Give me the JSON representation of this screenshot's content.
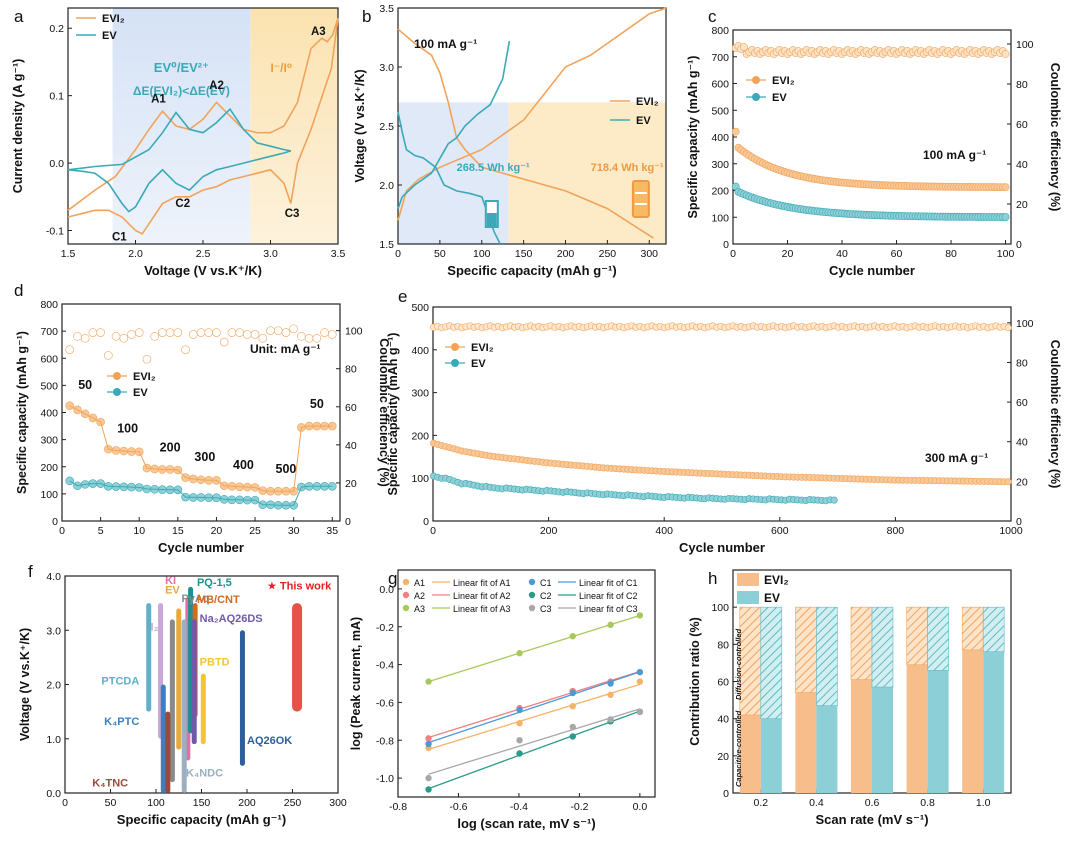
{
  "colors": {
    "evi2": "#f2a35a",
    "ev": "#3aaab8",
    "evi2_light": "#f8c896",
    "ev_light": "#8fd0d6",
    "band_blue": "#dfe9f7",
    "band_yellow": "#fcebc6",
    "redwork": "#e8504a",
    "red_star": "#e02020"
  },
  "chart_data": [
    {
      "panel": "a",
      "type": "line",
      "xlabel": "Voltage (V vs.K⁺/K)",
      "ylabel": "Current density (A g⁻¹)",
      "xlim": [
        1.5,
        3.5
      ],
      "ylim": [
        -0.12,
        0.23
      ],
      "xticks": [
        "1.5",
        "2.0",
        "2.5",
        "3.0",
        "3.5"
      ],
      "xtick_vals": [
        1.5,
        2.0,
        2.5,
        3.0,
        3.5
      ],
      "yticks": [
        "-0.1",
        "0.0",
        "0.1",
        "0.2"
      ],
      "ytick_vals": [
        -0.1,
        0.0,
        0.1,
        0.2
      ],
      "legend": [
        "EVI₂",
        "EV"
      ],
      "band_labels": {
        "title": "EV⁰/EV²⁺",
        "subtitle": "ΔE(EVI₂)<ΔE(EV)",
        "iodine": "I⁻/I⁰"
      },
      "peaks": [
        "A1",
        "A2",
        "A3",
        "C1",
        "C2",
        "C3"
      ],
      "series": [
        {
          "name": "EVI₂",
          "x": [
            1.5,
            1.7,
            1.85,
            2.0,
            2.1,
            2.2,
            2.3,
            2.4,
            2.5,
            2.6,
            2.7,
            2.8,
            2.9,
            3.0,
            3.1,
            3.2,
            3.3,
            3.38,
            3.42,
            3.46,
            3.5,
            3.45,
            3.35,
            3.3,
            3.2,
            3.15,
            3.1,
            3.0,
            2.9,
            2.8,
            2.7,
            2.6,
            2.5,
            2.4,
            2.3,
            2.2,
            2.1,
            2.05,
            2.0,
            1.9,
            1.8,
            1.7,
            1.6,
            1.5
          ],
          "y": [
            -0.07,
            -0.04,
            -0.02,
            0.02,
            0.05,
            0.077,
            0.055,
            0.05,
            0.065,
            0.09,
            0.07,
            0.05,
            0.045,
            0.045,
            0.055,
            0.09,
            0.17,
            0.185,
            0.18,
            0.19,
            0.215,
            0.14,
            0.08,
            0.05,
            0.0,
            -0.06,
            -0.03,
            -0.01,
            -0.015,
            -0.02,
            -0.025,
            -0.035,
            -0.04,
            -0.05,
            -0.05,
            -0.06,
            -0.09,
            -0.105,
            -0.1,
            -0.08,
            -0.07,
            -0.07,
            -0.075,
            -0.08
          ]
        },
        {
          "name": "EV",
          "x": [
            1.5,
            1.7,
            1.9,
            2.1,
            2.2,
            2.3,
            2.4,
            2.5,
            2.6,
            2.7,
            2.8,
            2.9,
            3.0,
            3.1,
            3.15,
            3.1,
            3.0,
            2.9,
            2.8,
            2.7,
            2.6,
            2.5,
            2.4,
            2.3,
            2.2,
            2.1,
            2.0,
            1.95,
            1.9,
            1.8,
            1.7,
            1.6,
            1.5
          ],
          "y": [
            -0.01,
            -0.005,
            -0.002,
            0.02,
            0.045,
            0.075,
            0.05,
            0.045,
            0.06,
            0.08,
            0.05,
            0.03,
            0.025,
            0.02,
            0.018,
            0.015,
            0.01,
            0.005,
            0.0,
            -0.005,
            -0.01,
            -0.02,
            -0.04,
            -0.03,
            -0.01,
            -0.03,
            -0.065,
            -0.072,
            -0.06,
            -0.03,
            -0.015,
            -0.012,
            -0.01
          ]
        }
      ]
    },
    {
      "panel": "b",
      "type": "line",
      "xlabel": "Specific capacity (mAh g⁻¹)",
      "ylabel": "Voltage (V vs.K⁺/K)",
      "xlim": [
        0,
        320
      ],
      "ylim": [
        1.5,
        3.5
      ],
      "xticks": [
        "0",
        "50",
        "100",
        "150",
        "200",
        "250",
        "300"
      ],
      "xtick_vals": [
        0,
        50,
        100,
        150,
        200,
        250,
        300
      ],
      "yticks": [
        "1.5",
        "2.0",
        "2.5",
        "3.0",
        "3.5"
      ],
      "ytick_vals": [
        1.5,
        2.0,
        2.5,
        3.0,
        3.5
      ],
      "annotation": "100 mA g⁻¹",
      "legend": [
        "EVI₂",
        "EV"
      ],
      "energy_labels": {
        "ev": "268.5 Wh kg⁻¹",
        "evi2": "718.4 Wh kg⁻¹"
      },
      "series": [
        {
          "name": "EVI₂ charge",
          "x": [
            0,
            10,
            25,
            50,
            100,
            150,
            200,
            230,
            250,
            300,
            320
          ],
          "y": [
            1.7,
            1.95,
            2.05,
            2.15,
            2.3,
            2.55,
            3.0,
            3.1,
            3.2,
            3.45,
            3.5
          ]
        },
        {
          "name": "EVI₂ discharge",
          "x": [
            0,
            20,
            40,
            50,
            60,
            70,
            80,
            100,
            150,
            200,
            250,
            305
          ],
          "y": [
            3.32,
            3.2,
            3.1,
            2.95,
            2.7,
            2.4,
            2.3,
            2.15,
            2.05,
            1.95,
            1.8,
            1.55
          ]
        },
        {
          "name": "EV charge",
          "x": [
            0,
            5,
            20,
            40,
            60,
            70,
            80,
            95,
            110,
            125,
            133
          ],
          "y": [
            1.8,
            1.9,
            2.0,
            2.1,
            2.35,
            2.4,
            2.5,
            2.6,
            2.68,
            2.9,
            3.22
          ]
        },
        {
          "name": "EV discharge",
          "x": [
            0,
            5,
            10,
            20,
            30,
            45,
            55,
            70,
            85,
            100,
            115,
            122
          ],
          "y": [
            2.62,
            2.45,
            2.3,
            2.25,
            2.23,
            2.15,
            2.0,
            1.95,
            1.93,
            1.9,
            1.6,
            1.5
          ]
        }
      ]
    },
    {
      "panel": "c",
      "type": "scatter",
      "xlabel": "Cycle number",
      "ylabel": "Specific capacity (mAh g⁻¹)",
      "y2label": "Coulombic efficiency (%)",
      "xlim": [
        0,
        102
      ],
      "ylim": [
        0,
        800
      ],
      "y2lim": [
        0,
        107
      ],
      "xticks": [
        "0",
        "20",
        "40",
        "60",
        "80",
        "100"
      ],
      "xtick_vals": [
        0,
        20,
        40,
        60,
        80,
        100
      ],
      "yticks": [
        "0",
        "100",
        "200",
        "300",
        "400",
        "500",
        "600",
        "700",
        "800"
      ],
      "ytick_vals": [
        0,
        100,
        200,
        300,
        400,
        500,
        600,
        700,
        800
      ],
      "y2ticks": [
        "0",
        "20",
        "40",
        "60",
        "80",
        "100"
      ],
      "y2tick_vals": [
        0,
        20,
        40,
        60,
        80,
        100
      ],
      "annotation": "100 mA g⁻¹",
      "legend": [
        "EVI₂",
        "EV"
      ],
      "series": [
        {
          "name": "EVI₂",
          "start": 420,
          "second": 360,
          "end": 212
        },
        {
          "name": "EV",
          "start": 215,
          "second": 195,
          "end": 100
        },
        {
          "name": "EVI₂ CE",
          "value": 96
        },
        {
          "name": "EV CE",
          "value": 96
        }
      ]
    },
    {
      "panel": "d",
      "type": "scatter",
      "xlabel": "Cycle number",
      "ylabel": "Specific capacity (mAh g⁻¹)",
      "y2label": "Coulombic efficiency (%)",
      "xlim": [
        0,
        36
      ],
      "ylim": [
        0,
        800
      ],
      "y2lim": [
        0,
        114
      ],
      "xticks": [
        "0",
        "5",
        "10",
        "15",
        "20",
        "25",
        "30",
        "35"
      ],
      "xtick_vals": [
        0,
        5,
        10,
        15,
        20,
        25,
        30,
        35
      ],
      "yticks": [
        "0",
        "100",
        "200",
        "300",
        "400",
        "500",
        "600",
        "700",
        "800"
      ],
      "ytick_vals": [
        0,
        100,
        200,
        300,
        400,
        500,
        600,
        700,
        800
      ],
      "y2ticks": [
        "0",
        "20",
        "40",
        "60",
        "80",
        "100"
      ],
      "y2tick_vals": [
        0,
        20,
        40,
        60,
        80,
        100
      ],
      "annotation": "Unit: mA g⁻¹",
      "legend": [
        "EVI₂",
        "EV"
      ],
      "rate_labels": [
        "50",
        "100",
        "200",
        "300",
        "400",
        "500",
        "50"
      ],
      "evi2_capacity": [
        425,
        410,
        395,
        380,
        365,
        265,
        260,
        258,
        256,
        255,
        195,
        192,
        190,
        190,
        188,
        160,
        155,
        152,
        150,
        150,
        130,
        128,
        126,
        125,
        124,
        112,
        110,
        110,
        110,
        110,
        345,
        350,
        350,
        350,
        350
      ],
      "ev_capacity": [
        148,
        130,
        135,
        138,
        138,
        128,
        127,
        126,
        125,
        124,
        118,
        117,
        116,
        115,
        115,
        88,
        87,
        87,
        86,
        86,
        80,
        78,
        78,
        77,
        77,
        60,
        60,
        58,
        58,
        58,
        125,
        128,
        128,
        128,
        128
      ],
      "evi2_ce": [
        90,
        97,
        96,
        99,
        99,
        87,
        97,
        96,
        98,
        99,
        85,
        97,
        99,
        99,
        99,
        90,
        98,
        99,
        99,
        99,
        94,
        99,
        99,
        98,
        98,
        96,
        100,
        100,
        99,
        101,
        97,
        96,
        96,
        99,
        98
      ]
    },
    {
      "panel": "e",
      "type": "scatter",
      "xlabel": "Cycle number",
      "ylabel": "Specific capacity (mAh g⁻¹)",
      "y2label": "Coulombic efficiency (%)",
      "xlim": [
        0,
        1000
      ],
      "ylim": [
        0,
        500
      ],
      "y2lim": [
        0,
        108
      ],
      "xticks": [
        "0",
        "200",
        "400",
        "600",
        "800",
        "1000"
      ],
      "xtick_vals": [
        0,
        200,
        400,
        600,
        800,
        1000
      ],
      "yticks": [
        "0",
        "100",
        "200",
        "300",
        "400",
        "500"
      ],
      "ytick_vals": [
        0,
        100,
        200,
        300,
        400,
        500
      ],
      "y2ticks": [
        "0",
        "20",
        "40",
        "60",
        "80",
        "100"
      ],
      "y2tick_vals": [
        0,
        20,
        40,
        60,
        80,
        100
      ],
      "annotation": "300 mA g⁻¹",
      "legend": [
        "EVI₂",
        "EV"
      ],
      "series": [
        {
          "name": "EVI₂",
          "x": [
            1,
            50,
            100,
            200,
            300,
            400,
            500,
            600,
            700,
            800,
            900,
            1000
          ],
          "y": [
            178,
            160,
            148,
            132,
            120,
            112,
            106,
            100,
            96,
            92,
            90,
            88
          ]
        },
        {
          "name": "EV",
          "x": [
            1,
            25,
            50,
            100,
            200,
            300,
            400,
            500,
            600,
            700
          ],
          "y": [
            105,
            98,
            88,
            78,
            70,
            62,
            56,
            52,
            50,
            48
          ]
        },
        {
          "name": "CE",
          "value": 98
        }
      ]
    },
    {
      "panel": "f",
      "type": "bar",
      "xlabel": "Specific capacity (mAh g⁻¹)",
      "ylabel": "Voltage (V vs.K⁺/K)",
      "xlim": [
        0,
        300
      ],
      "ylim": [
        0,
        4.0
      ],
      "xticks": [
        "0",
        "50",
        "100",
        "150",
        "200",
        "250",
        "300"
      ],
      "xtick_vals": [
        0,
        50,
        100,
        150,
        200,
        250,
        300
      ],
      "yticks": [
        "0.0",
        "1.0",
        "2.0",
        "3.0",
        "4.0"
      ],
      "ytick_vals": [
        0,
        1,
        2,
        3,
        4
      ],
      "this_work_label": "★ This work",
      "items": [
        {
          "label": "KI",
          "x": 135,
          "ylow": 0.6,
          "yhigh": 3.6,
          "color": "#e26fa8"
        },
        {
          "label": "EV",
          "x": 125,
          "ylow": 0.8,
          "yhigh": 3.4,
          "color": "#e8a93a"
        },
        {
          "label": "PyAq",
          "x": 118,
          "ylow": 0.2,
          "yhigh": 3.2,
          "color": "#8a8a8a"
        },
        {
          "label": "PQ-1,5",
          "x": 138,
          "ylow": 1.1,
          "yhigh": 3.8,
          "color": "#1f8f8f"
        },
        {
          "label": "MB/CNT",
          "x": 143,
          "ylow": 1.4,
          "yhigh": 3.5,
          "color": "#d66a1e"
        },
        {
          "label": "I₂",
          "x": 105,
          "ylow": 1.0,
          "yhigh": 3.5,
          "color": "#c8a8d8"
        },
        {
          "label": "Na₂AQ26DS",
          "x": 142,
          "ylow": 0.9,
          "yhigh": 3.2,
          "color": "#6f5aa8"
        },
        {
          "label": "PBTD",
          "x": 152,
          "ylow": 0.9,
          "yhigh": 2.2,
          "color": "#f2c630"
        },
        {
          "label": "PTCDA",
          "x": 92,
          "ylow": 1.5,
          "yhigh": 3.5,
          "color": "#5fb0c8"
        },
        {
          "label": "K₄PTC",
          "x": 108,
          "ylow": 0.0,
          "yhigh": 2.0,
          "color": "#3d7fc0"
        },
        {
          "label": "K₄TNC",
          "x": 113,
          "ylow": 0.0,
          "yhigh": 1.5,
          "color": "#9a4a3a"
        },
        {
          "label": "K₄NDC",
          "x": 131,
          "ylow": 0.0,
          "yhigh": 3.2,
          "color": "#9ab0c0"
        },
        {
          "label": "AQ26OK",
          "x": 195,
          "ylow": 0.5,
          "yhigh": 3.0,
          "color": "#2e5f9a"
        },
        {
          "label": "This work",
          "x": 255,
          "ylow": 1.5,
          "yhigh": 3.5,
          "color": "#e8504a"
        }
      ]
    },
    {
      "panel": "g",
      "type": "scatter",
      "xlabel": "log (scan rate, mV s⁻¹)",
      "ylabel": "log (Peak current, mA)",
      "xlim": [
        -0.8,
        0.05
      ],
      "ylim": [
        -1.1,
        0.1
      ],
      "xticks": [
        "-0.8",
        "-0.6",
        "-0.4",
        "-0.2",
        "0.0"
      ],
      "xtick_vals": [
        -0.8,
        -0.6,
        -0.4,
        -0.2,
        0.0
      ],
      "yticks": [
        "-1.0",
        "-0.8",
        "-0.6",
        "-0.4",
        "-0.2",
        "0.0"
      ],
      "ytick_vals": [
        -1.0,
        -0.8,
        -0.6,
        -0.4,
        -0.2,
        0.0
      ],
      "legend": [
        "A1",
        "Linear fit of A1",
        "C1",
        "Linear fit of C1",
        "A2",
        "Linear fit of A2",
        "C2",
        "Linear fit of C2",
        "A3",
        "Linear fit of A3",
        "C3",
        "Linear fit of C3"
      ],
      "x": [
        -0.699,
        -0.398,
        -0.222,
        -0.097,
        0.0
      ],
      "series": [
        {
          "name": "A1",
          "y": [
            -0.84,
            -0.71,
            -0.62,
            -0.56,
            -0.49
          ],
          "color": "#f5b36a"
        },
        {
          "name": "A2",
          "y": [
            -0.79,
            -0.63,
            -0.54,
            -0.49,
            -0.44
          ],
          "color": "#f08080"
        },
        {
          "name": "A3",
          "y": [
            -0.49,
            -0.34,
            -0.25,
            -0.19,
            -0.14
          ],
          "color": "#a8c85a"
        },
        {
          "name": "C1",
          "y": [
            -0.82,
            -0.64,
            -0.55,
            -0.5,
            -0.44
          ],
          "color": "#4a9ad8"
        },
        {
          "name": "C2",
          "y": [
            -1.06,
            -0.87,
            -0.78,
            -0.7,
            -0.65
          ],
          "color": "#2a9a8a"
        },
        {
          "name": "C3",
          "y": [
            -1.0,
            -0.8,
            -0.73,
            -0.69,
            -0.65
          ],
          "color": "#a8a8a8"
        }
      ]
    },
    {
      "panel": "h",
      "type": "bar",
      "xlabel": "Scan rate (mV s⁻¹)",
      "ylabel": "Contribution ratio (%)",
      "ylim": [
        0,
        120
      ],
      "yticks": [
        "0",
        "20",
        "40",
        "60",
        "80",
        "100"
      ],
      "ytick_vals": [
        0,
        20,
        40,
        60,
        80,
        100
      ],
      "categories": [
        "0.2",
        "0.4",
        "0.6",
        "0.8",
        "1.0"
      ],
      "legend": [
        "EVI₂",
        "EV"
      ],
      "region_labels": {
        "capacitive": "Capacitive-controlled",
        "diffusion": "Diffusion-controlled"
      },
      "series": [
        {
          "name": "EVI₂",
          "values": [
            42,
            54,
            61,
            69,
            77
          ]
        },
        {
          "name": "EV",
          "values": [
            40,
            47,
            57,
            66,
            76
          ]
        }
      ]
    }
  ],
  "panel_letters": [
    "a",
    "b",
    "c",
    "d",
    "e",
    "f",
    "g",
    "h"
  ]
}
